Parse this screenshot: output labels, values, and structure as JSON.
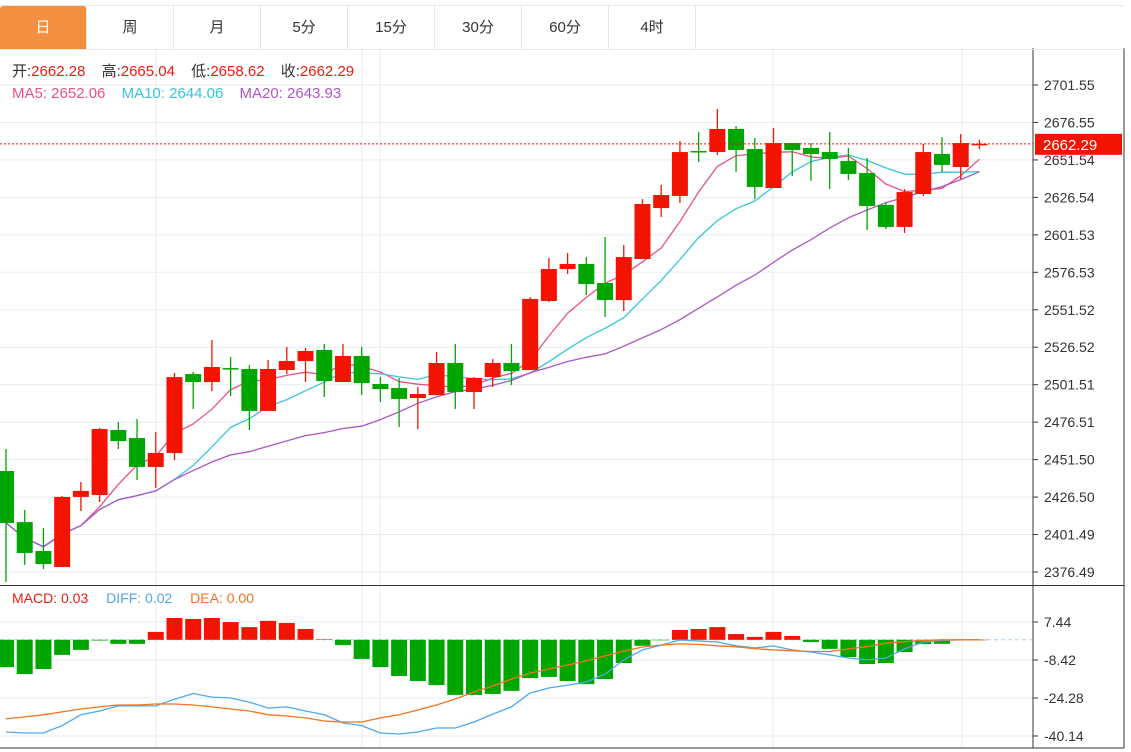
{
  "tabs": [
    "日",
    "周",
    "月",
    "5分",
    "15分",
    "30分",
    "60分",
    "4时"
  ],
  "active_tab": 0,
  "ohlc_info": {
    "open_label": "开:",
    "open": "2662.28",
    "high_label": "高:",
    "high": "2665.04",
    "low_label": "低:",
    "low": "2658.62",
    "close_label": "收:",
    "close": "2662.29"
  },
  "ma_info": {
    "ma5": "MA5: 2652.06",
    "ma10": "MA10: 2644.06",
    "ma20": "MA20: 2643.93"
  },
  "macd_info": {
    "macd": "MACD: 0.03",
    "diff": "DIFF: 0.02",
    "dea": "DEA: 0.00"
  },
  "current_price_label": "2662.29",
  "colors": {
    "up": "#f21400",
    "down": "#00a600",
    "ma5": "#ea4f8a",
    "ma10": "#36c6dc",
    "ma20": "#ad56c6",
    "diff": "#4ea8f0",
    "dea": "#f47320",
    "tab_active": "#f38f3f"
  },
  "chart_data": {
    "type": "candlestick",
    "price_ticks": [
      "2701.55",
      "2676.55",
      "2651.54",
      "2626.54",
      "2601.53",
      "2576.53",
      "2551.52",
      "2526.52",
      "2501.51",
      "2476.51",
      "2451.50",
      "2426.50",
      "2401.49",
      "2376.49"
    ],
    "price_range": [
      2376.49,
      2701.55
    ],
    "current_price": 2662.29,
    "ohlc": [
      [
        2443.9,
        2409.2,
        2458.6,
        2369.8
      ],
      [
        2409.8,
        2389.2,
        2417.9,
        2381.2
      ],
      [
        2390.5,
        2381.8,
        2405.8,
        2378.5
      ],
      [
        2379.8,
        2426.6,
        2427.2,
        2379.8
      ],
      [
        2426.6,
        2430.6,
        2436.6,
        2417.2
      ],
      [
        2427.9,
        2471.9,
        2472.6,
        2423.2
      ],
      [
        2471.3,
        2463.9,
        2476.6,
        2458.6
      ],
      [
        2465.9,
        2446.6,
        2478.6,
        2437.9
      ],
      [
        2446.6,
        2455.9,
        2469.9,
        2432.6
      ],
      [
        2455.9,
        2506.6,
        2509.3,
        2451.2
      ],
      [
        2508.6,
        2503.3,
        2510.0,
        2485.3
      ],
      [
        2503.3,
        2513.3,
        2531.3,
        2497.3
      ],
      [
        2512.6,
        2512.0,
        2520.0,
        2494.0
      ],
      [
        2512.0,
        2484.0,
        2514.6,
        2471.3
      ],
      [
        2484.0,
        2512.0,
        2518.0,
        2484.0
      ],
      [
        2511.3,
        2517.3,
        2526.7,
        2508.6
      ],
      [
        2517.3,
        2524.0,
        2526.0,
        2503.3
      ],
      [
        2524.7,
        2504.0,
        2528.7,
        2493.3
      ],
      [
        2503.3,
        2520.7,
        2528.7,
        2503.3
      ],
      [
        2520.7,
        2502.6,
        2526.7,
        2494.6
      ],
      [
        2502.0,
        2498.6,
        2506.6,
        2490.0
      ],
      [
        2499.3,
        2492.0,
        2506.0,
        2473.3
      ],
      [
        2492.6,
        2495.3,
        2500.0,
        2471.9
      ],
      [
        2494.6,
        2516.0,
        2523.3,
        2494.6
      ],
      [
        2516.0,
        2496.6,
        2528.7,
        2485.3
      ],
      [
        2496.6,
        2506.0,
        2506.6,
        2485.3
      ],
      [
        2506.6,
        2516.0,
        2518.6,
        2500.0
      ],
      [
        2516.0,
        2510.6,
        2528.7,
        2501.3
      ],
      [
        2511.3,
        2558.7,
        2560.0,
        2511.3
      ],
      [
        2557.4,
        2578.7,
        2586.1,
        2556.7
      ],
      [
        2578.7,
        2582.1,
        2589.4,
        2575.4
      ],
      [
        2582.1,
        2568.7,
        2586.7,
        2561.4
      ],
      [
        2569.4,
        2558.0,
        2600.1,
        2546.7
      ],
      [
        2558.0,
        2586.7,
        2594.8,
        2550.7
      ],
      [
        2585.4,
        2622.1,
        2625.4,
        2585.4
      ],
      [
        2619.4,
        2628.1,
        2634.8,
        2613.4
      ],
      [
        2627.5,
        2656.8,
        2664.2,
        2622.8
      ],
      [
        2657.5,
        2656.8,
        2670.2,
        2650.2
      ],
      [
        2656.8,
        2672.2,
        2685.5,
        2654.8
      ],
      [
        2672.2,
        2658.2,
        2674.2,
        2643.5
      ],
      [
        2658.8,
        2633.5,
        2666.2,
        2625.4
      ],
      [
        2632.8,
        2662.8,
        2672.9,
        2632.8
      ],
      [
        2662.8,
        2658.2,
        2662.8,
        2640.8
      ],
      [
        2659.5,
        2655.5,
        2662.8,
        2637.5
      ],
      [
        2656.8,
        2652.2,
        2670.2,
        2632.1
      ],
      [
        2650.8,
        2642.2,
        2659.5,
        2638.1
      ],
      [
        2642.8,
        2620.8,
        2652.8,
        2604.8
      ],
      [
        2621.5,
        2606.8,
        2623.4,
        2605.4
      ],
      [
        2606.8,
        2630.1,
        2632.1,
        2602.8
      ],
      [
        2628.8,
        2656.8,
        2662.2,
        2627.5
      ],
      [
        2655.5,
        2648.2,
        2666.8,
        2643.5
      ],
      [
        2646.8,
        2662.8,
        2668.8,
        2638.8
      ],
      [
        2662.28,
        2662.29,
        2665.04,
        2658.62
      ]
    ],
    "macd_ticks": [
      "7.44",
      "-8.42",
      "-24.28",
      "-40.14"
    ],
    "macd_tick_values": [
      7.44,
      -8.42,
      -24.28,
      -40.14
    ],
    "macd": [
      -11.4,
      -14.3,
      -12.2,
      -6.3,
      -4.2,
      -0.3,
      -1.7,
      -1.7,
      3.3,
      9.1,
      8.7,
      9.1,
      7.4,
      5.3,
      7.9,
      7.0,
      4.5,
      0.2,
      -2.2,
      -8.0,
      -11.4,
      -15.1,
      -17.2,
      -18.9,
      -23.0,
      -23.0,
      -22.6,
      -21.3,
      -16.0,
      -15.5,
      -17.2,
      -18.5,
      -16.4,
      -9.7,
      -2.5,
      -0.2,
      4.1,
      4.5,
      5.3,
      2.4,
      1.2,
      3.3,
      1.6,
      -0.9,
      -3.8,
      -7.2,
      -10.1,
      -9.7,
      -5.1,
      -1.8,
      -1.7,
      0.0,
      0.03
    ],
    "diff": [
      -38.5,
      -38.9,
      -38.9,
      -35.8,
      -31.3,
      -29.7,
      -27.6,
      -27.6,
      -27.6,
      -24.8,
      -22.4,
      -23.9,
      -24.3,
      -26.0,
      -28.5,
      -28.0,
      -29.7,
      -31.3,
      -34.7,
      -35.8,
      -38.9,
      -39.3,
      -38.5,
      -36.8,
      -36.8,
      -34.3,
      -31.0,
      -28.0,
      -22.2,
      -20.1,
      -18.9,
      -17.6,
      -14.3,
      -8.4,
      -4.2,
      -2.2,
      -0.1,
      -0.5,
      -0.9,
      -2.5,
      -3.4,
      -2.6,
      -4.2,
      -5.1,
      -6.3,
      -7.6,
      -8.4,
      -7.6,
      -3.8,
      -0.9,
      -0.3,
      0.0,
      0.02
    ],
    "dea": [
      -33.0,
      -32.2,
      -31.3,
      -30.1,
      -28.9,
      -28.0,
      -27.2,
      -27.2,
      -26.8,
      -26.8,
      -27.2,
      -28.0,
      -28.9,
      -29.7,
      -31.3,
      -31.8,
      -32.6,
      -33.9,
      -34.3,
      -34.3,
      -32.6,
      -31.3,
      -29.3,
      -27.2,
      -24.7,
      -21.8,
      -19.3,
      -16.4,
      -13.9,
      -12.2,
      -10.5,
      -8.8,
      -6.7,
      -4.7,
      -3.0,
      -2.2,
      -1.7,
      -1.9,
      -2.5,
      -2.9,
      -3.7,
      -4.2,
      -4.6,
      -4.9,
      -4.9,
      -3.8,
      -2.9,
      -1.4,
      -0.8,
      -0.3,
      0.0,
      0.0,
      0.0
    ]
  }
}
